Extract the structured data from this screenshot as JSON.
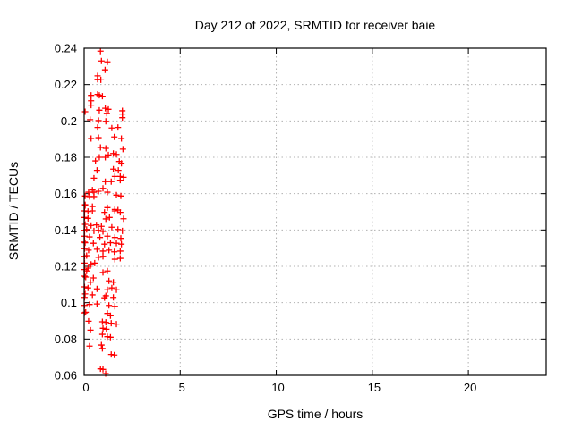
{
  "chart_data": {
    "type": "scatter",
    "title": "Day 212 of 2022, SRMTID for receiver baie",
    "xlabel": "GPS time / hours",
    "ylabel": "SRMTID / TECUs",
    "xlim": [
      0,
      24.05
    ],
    "ylim": [
      0.06,
      0.24
    ],
    "xticks": [
      0,
      5,
      10,
      15,
      20
    ],
    "xtick_labels": [
      "0",
      "5",
      "10",
      "15",
      "20"
    ],
    "yticks": [
      0.06,
      0.08,
      0.1,
      0.12,
      0.14,
      0.16,
      0.18,
      0.2,
      0.22,
      0.24
    ],
    "ytick_labels": [
      "0.06",
      "0.08",
      "0.1",
      "0.12",
      "0.14",
      "0.16",
      "0.18",
      "0.2",
      "0.22",
      "0.24"
    ],
    "grid": true,
    "legend": "none",
    "marker": "plus",
    "marker_color": "#ff0000",
    "grid_color": "#b0b0b0",
    "border_color": "#000000",
    "series_name": "SRMTID",
    "points": [
      [
        0.85,
        0.2384
      ],
      [
        0.9,
        0.233
      ],
      [
        1.21,
        0.2325
      ],
      [
        1.09,
        0.2281
      ],
      [
        0.7,
        0.2248
      ],
      [
        0.7,
        0.2229
      ],
      [
        0.87,
        0.2226
      ],
      [
        0.36,
        0.2141
      ],
      [
        0.7,
        0.2146
      ],
      [
        0.79,
        0.2141
      ],
      [
        0.95,
        0.2136
      ],
      [
        0.36,
        0.2111
      ],
      [
        0.36,
        0.2087
      ],
      [
        0.05,
        0.2051
      ],
      [
        0.79,
        0.2059
      ],
      [
        1.1,
        0.207
      ],
      [
        1.26,
        0.2064
      ],
      [
        1.18,
        0.2042
      ],
      [
        1.99,
        0.2056
      ],
      [
        1.99,
        0.2038
      ],
      [
        0.31,
        0.2007
      ],
      [
        0.75,
        0.2002
      ],
      [
        1.13,
        0.1998
      ],
      [
        1.99,
        0.2018
      ],
      [
        0.7,
        0.1964
      ],
      [
        1.44,
        0.1961
      ],
      [
        1.76,
        0.1964
      ],
      [
        0.36,
        0.1903
      ],
      [
        0.75,
        0.1908
      ],
      [
        1.57,
        0.1912
      ],
      [
        1.94,
        0.1903
      ],
      [
        0.85,
        0.1854
      ],
      [
        1.13,
        0.1849
      ],
      [
        2.02,
        0.1845
      ],
      [
        1.26,
        0.1813
      ],
      [
        1.52,
        0.1821
      ],
      [
        1.68,
        0.1816
      ],
      [
        0.59,
        0.178
      ],
      [
        0.79,
        0.18
      ],
      [
        1.1,
        0.18
      ],
      [
        1.83,
        0.1777
      ],
      [
        1.94,
        0.1767
      ],
      [
        0.67,
        0.1728
      ],
      [
        1.52,
        0.1735
      ],
      [
        1.78,
        0.1728
      ],
      [
        0.51,
        0.1685
      ],
      [
        1.6,
        0.1695
      ],
      [
        1.88,
        0.1695
      ],
      [
        2.05,
        0.169
      ],
      [
        1.88,
        0.1674
      ],
      [
        1.1,
        0.1666
      ],
      [
        1.41,
        0.1666
      ],
      [
        0.98,
        0.1629
      ],
      [
        0.43,
        0.162
      ],
      [
        0.23,
        0.1608
      ],
      [
        0.51,
        0.1608
      ],
      [
        0.75,
        0.1613
      ],
      [
        1.21,
        0.1608
      ],
      [
        0.05,
        0.1587
      ],
      [
        0.28,
        0.1584
      ],
      [
        0.51,
        0.1584
      ],
      [
        1.68,
        0.1592
      ],
      [
        1.91,
        0.1587
      ],
      [
        0.05,
        0.1539
      ],
      [
        0.05,
        0.1534
      ],
      [
        0.43,
        0.1529
      ],
      [
        1.21,
        0.1523
      ],
      [
        1.6,
        0.1513
      ],
      [
        1.76,
        0.151
      ],
      [
        0.02,
        0.1505
      ],
      [
        0.2,
        0.1502
      ],
      [
        0.43,
        0.1505
      ],
      [
        1.06,
        0.1497
      ],
      [
        1.6,
        0.1505
      ],
      [
        1.88,
        0.1497
      ],
      [
        2.05,
        0.1462
      ],
      [
        0.02,
        0.1469
      ],
      [
        0.2,
        0.1464
      ],
      [
        1.13,
        0.1461
      ],
      [
        1.32,
        0.1469
      ],
      [
        0.05,
        0.1431
      ],
      [
        0.36,
        0.1425
      ],
      [
        0.64,
        0.1428
      ],
      [
        0.9,
        0.142
      ],
      [
        1.44,
        0.1415
      ],
      [
        0.02,
        0.1398
      ],
      [
        0.13,
        0.1403
      ],
      [
        0.51,
        0.1395
      ],
      [
        0.75,
        0.1398
      ],
      [
        0.98,
        0.1392
      ],
      [
        1.76,
        0.1403
      ],
      [
        1.99,
        0.1395
      ],
      [
        0.02,
        0.1366
      ],
      [
        0.28,
        0.1362
      ],
      [
        0.82,
        0.1359
      ],
      [
        1.21,
        0.1366
      ],
      [
        1.6,
        0.1359
      ],
      [
        1.91,
        0.1354
      ],
      [
        0.02,
        0.1333
      ],
      [
        0.05,
        0.133
      ],
      [
        0.48,
        0.1327
      ],
      [
        1.06,
        0.1322
      ],
      [
        1.37,
        0.133
      ],
      [
        1.68,
        0.1327
      ],
      [
        1.94,
        0.1322
      ],
      [
        0.02,
        0.1297
      ],
      [
        0.23,
        0.1289
      ],
      [
        0.67,
        0.1294
      ],
      [
        0.98,
        0.1284
      ],
      [
        1.29,
        0.1289
      ],
      [
        1.57,
        0.128
      ],
      [
        1.88,
        0.1284
      ],
      [
        0.02,
        0.1255
      ],
      [
        0.13,
        0.1259
      ],
      [
        0.75,
        0.125
      ],
      [
        0.98,
        0.1255
      ],
      [
        1.6,
        0.1239
      ],
      [
        1.88,
        0.1244
      ],
      [
        0.02,
        0.1218
      ],
      [
        0.36,
        0.1211
      ],
      [
        0.55,
        0.1218
      ],
      [
        0.2,
        0.119
      ],
      [
        0.02,
        0.1182
      ],
      [
        0.13,
        0.1174
      ],
      [
        0.98,
        0.1166
      ],
      [
        1.21,
        0.1174
      ],
      [
        0.02,
        0.1146
      ],
      [
        0.08,
        0.1141
      ],
      [
        0.48,
        0.1136
      ],
      [
        0.33,
        0.1113
      ],
      [
        1.29,
        0.112
      ],
      [
        1.52,
        0.1113
      ],
      [
        0.02,
        0.1087
      ],
      [
        0.2,
        0.1081
      ],
      [
        0.67,
        0.1076
      ],
      [
        1.21,
        0.1071
      ],
      [
        1.44,
        0.1081
      ],
      [
        1.68,
        0.1071
      ],
      [
        0.05,
        0.1048
      ],
      [
        0.43,
        0.1043
      ],
      [
        1.13,
        0.1038
      ],
      [
        0.02,
        0.1029
      ],
      [
        1.06,
        0.1027
      ],
      [
        1.52,
        0.1029
      ],
      [
        0.02,
        0.0985
      ],
      [
        0.28,
        0.099
      ],
      [
        0.67,
        0.0993
      ],
      [
        1.29,
        0.0985
      ],
      [
        1.6,
        0.098
      ],
      [
        0.02,
        0.0944
      ],
      [
        0.08,
        0.0947
      ],
      [
        1.21,
        0.0941
      ],
      [
        1.37,
        0.0928
      ],
      [
        0.23,
        0.0898
      ],
      [
        0.95,
        0.0895
      ],
      [
        1.13,
        0.0892
      ],
      [
        1.41,
        0.0887
      ],
      [
        1.68,
        0.0882
      ],
      [
        0.33,
        0.0849
      ],
      [
        0.98,
        0.0859
      ],
      [
        1.16,
        0.0854
      ],
      [
        0.95,
        0.0826
      ],
      [
        1.21,
        0.0813
      ],
      [
        1.37,
        0.081
      ],
      [
        0.28,
        0.0761
      ],
      [
        0.9,
        0.0767
      ],
      [
        0.95,
        0.0748
      ],
      [
        1.41,
        0.0715
      ],
      [
        1.57,
        0.0712
      ],
      [
        0.85,
        0.0636
      ],
      [
        0.98,
        0.0633
      ],
      [
        1.12,
        0.061
      ]
    ]
  }
}
